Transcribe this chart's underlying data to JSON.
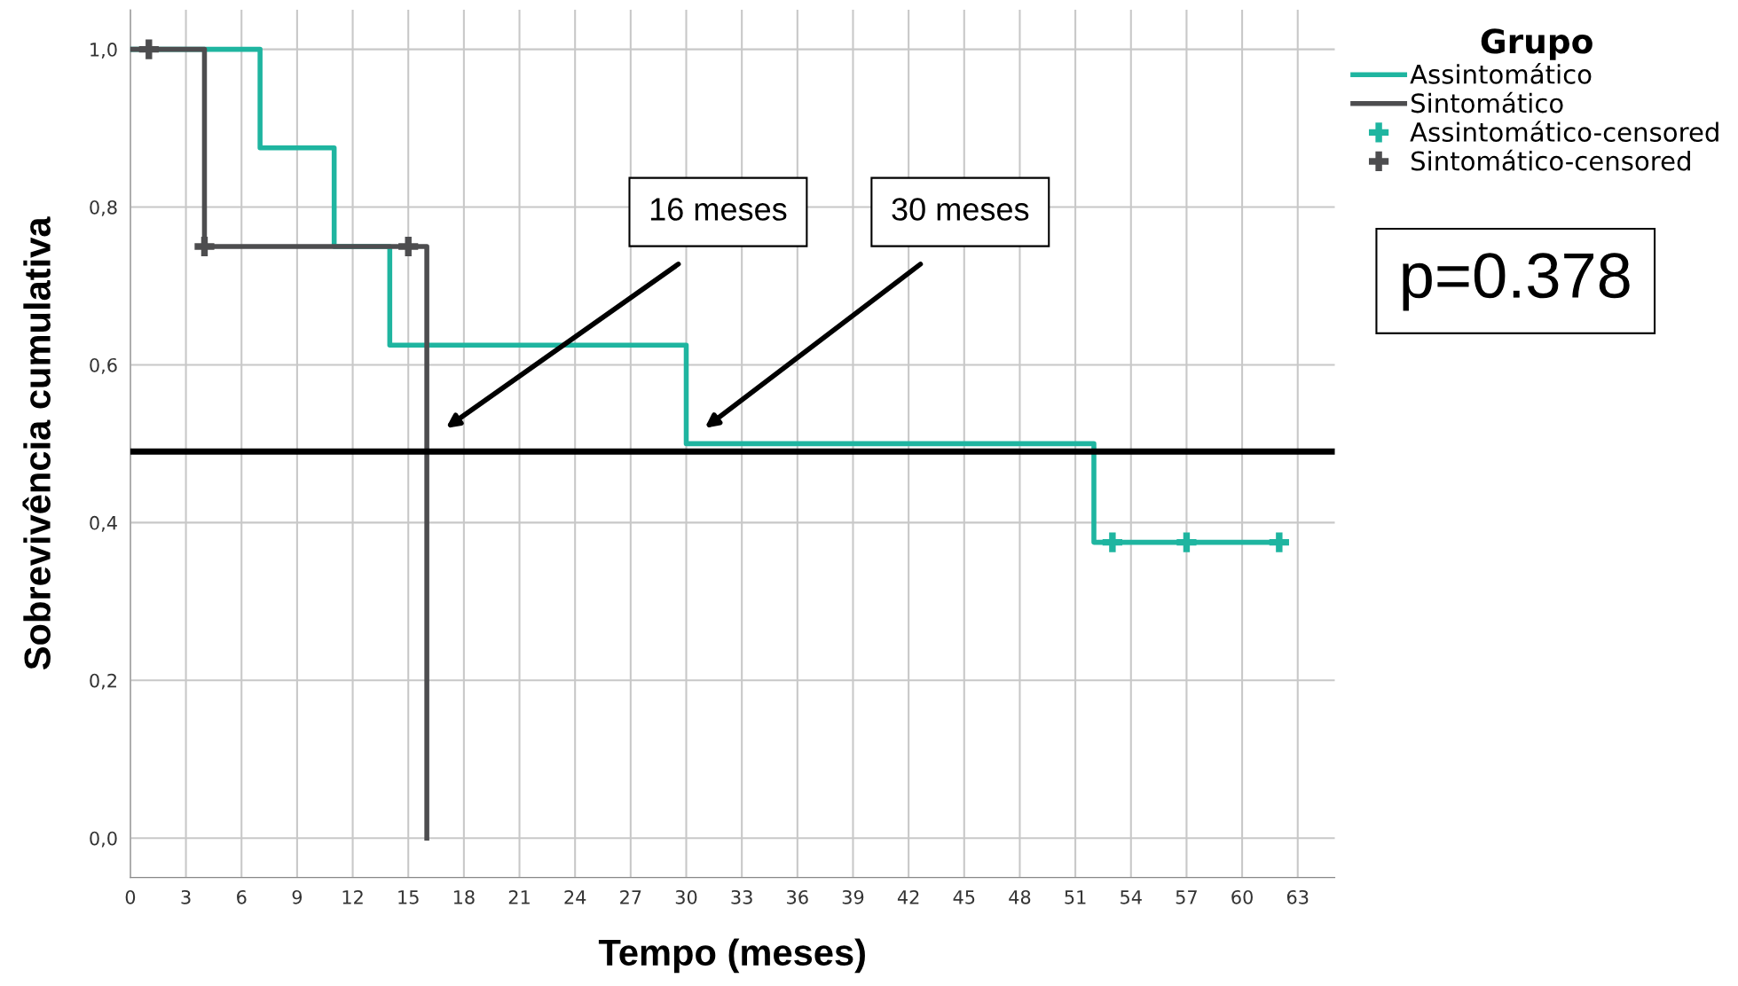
{
  "chart_data": {
    "type": "step",
    "xlabel": "Tempo (meses)",
    "ylabel": "Sobrevivência cumulativa",
    "legend_title": "Grupo",
    "legend": "right",
    "grid": true,
    "xlim": [
      0,
      65
    ],
    "xticks": [
      0,
      3,
      6,
      9,
      12,
      15,
      18,
      21,
      24,
      27,
      30,
      33,
      36,
      39,
      42,
      45,
      48,
      51,
      54,
      57,
      60,
      63
    ],
    "ylim": [
      -0.05,
      1.05
    ],
    "yticks": [
      {
        "value": 0,
        "label": "0,0"
      },
      {
        "value": 0.2,
        "label": "0,2"
      },
      {
        "value": 0.4,
        "label": "0,4"
      },
      {
        "value": 0.6,
        "label": "0,6"
      },
      {
        "value": 0.8,
        "label": "0,8"
      },
      {
        "value": 1,
        "label": "1,0"
      }
    ],
    "series": [
      {
        "name": "Assintomático",
        "color": "#1fb5a0",
        "x": [
          0,
          7,
          11,
          14,
          30,
          52,
          62
        ],
        "values": [
          1,
          0.875,
          0.75,
          0.625,
          0.5,
          0.375,
          0.375
        ]
      },
      {
        "name": "Sintomático",
        "color": "#4d4d4f",
        "x": [
          0,
          4,
          16
        ],
        "values": [
          1,
          0.75,
          0
        ]
      },
      {
        "name": "Assintomático-censored",
        "type": "scatter",
        "marker": "cross",
        "color": "#1fb5a0",
        "x": [
          53,
          57,
          62
        ],
        "values": [
          0.375,
          0.375,
          0.375
        ]
      },
      {
        "name": "Sintomático-censored",
        "type": "scatter",
        "marker": "cross",
        "color": "#4d4d4f",
        "x": [
          1,
          4,
          15
        ],
        "values": [
          1,
          0.75,
          0.75
        ]
      }
    ],
    "ref_lines": [
      {
        "axis": "y",
        "value": 0.49,
        "color": "#000000"
      }
    ],
    "annotations": [
      "16 meses",
      "30 meses",
      "p=0.378"
    ]
  }
}
